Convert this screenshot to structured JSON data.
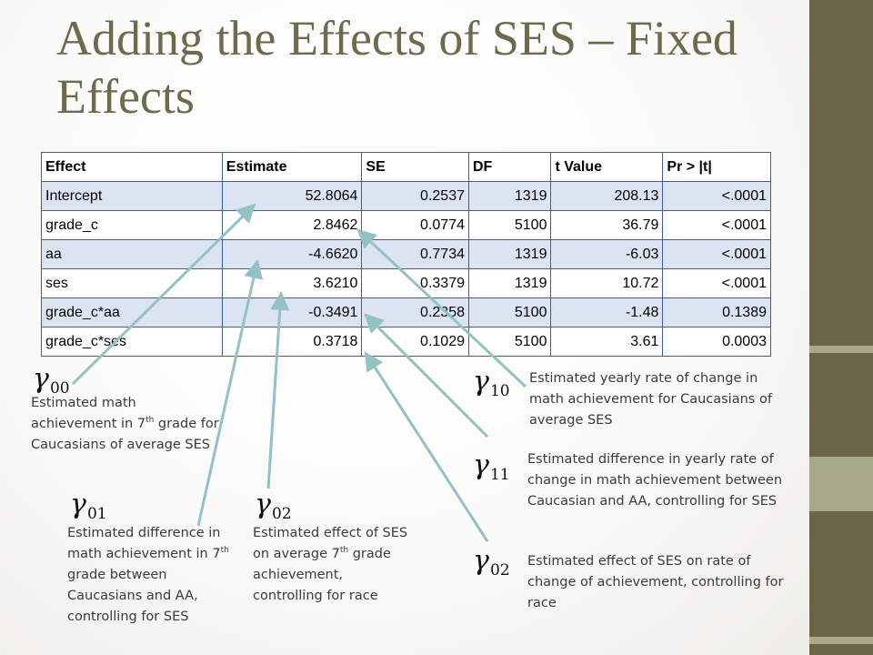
{
  "title": "Adding the Effects of SES – Fixed Effects",
  "table": {
    "headers": [
      "Effect",
      "Estimate",
      "SE",
      "DF",
      "t Value",
      "Pr > |t|"
    ],
    "rows": [
      [
        "Intercept",
        "52.8064",
        "0.2537",
        "1319",
        "208.13",
        "<.0001"
      ],
      [
        "grade_c",
        "2.8462",
        "0.0774",
        "5100",
        "36.79",
        "<.0001"
      ],
      [
        "aa",
        "-4.6620",
        "0.7734",
        "1319",
        "-6.03",
        "<.0001"
      ],
      [
        "ses",
        "3.6210",
        "0.3379",
        "1319",
        "10.72",
        "<.0001"
      ],
      [
        "grade_c*aa",
        "-0.3491",
        "0.2358",
        "5100",
        "-1.48",
        "0.1389"
      ],
      [
        "grade_c*ses",
        "0.3718",
        "0.1029",
        "5100",
        "3.61",
        "0.0003"
      ]
    ]
  },
  "symbols": {
    "g00": {
      "base": "γ",
      "sub": "00"
    },
    "g01": {
      "base": "γ",
      "sub": "01"
    },
    "g02a": {
      "base": "γ",
      "sub": "02"
    },
    "g10": {
      "base": "γ",
      "sub": "10"
    },
    "g11": {
      "base": "γ",
      "sub": "11"
    },
    "g02b": {
      "base": "γ",
      "sub": "02"
    }
  },
  "notes": {
    "g00": {
      "pre": "Estimated math achievement in 7",
      "sup": "th",
      "post": " grade for Caucasians of average SES"
    },
    "g01": {
      "pre": "Estimated  difference in math achievement in 7",
      "sup": "th",
      "post": " grade between Caucasians and AA, controlling for SES"
    },
    "g02a": {
      "pre": "Estimated  effect of SES on average 7",
      "sup": "th",
      "post": " grade achievement, controlling for race"
    },
    "g10": {
      "text": "Estimated yearly rate of change in math achievement for Caucasians of average SES"
    },
    "g11": {
      "text": "Estimated difference  in yearly rate of change in math achievement between Caucasian and AA, controlling for SES"
    },
    "g02b": {
      "text": "Estimated  effect of SES on rate of change of  achievement, controlling for race"
    }
  },
  "colors": {
    "title": "#6d6a4d",
    "sidebar": "#6b6448",
    "sidebar_stripe": "#a8a98b",
    "table_border": "#3b5f99",
    "table_band": "#dce4f2",
    "arrow": "#93c1c4"
  }
}
